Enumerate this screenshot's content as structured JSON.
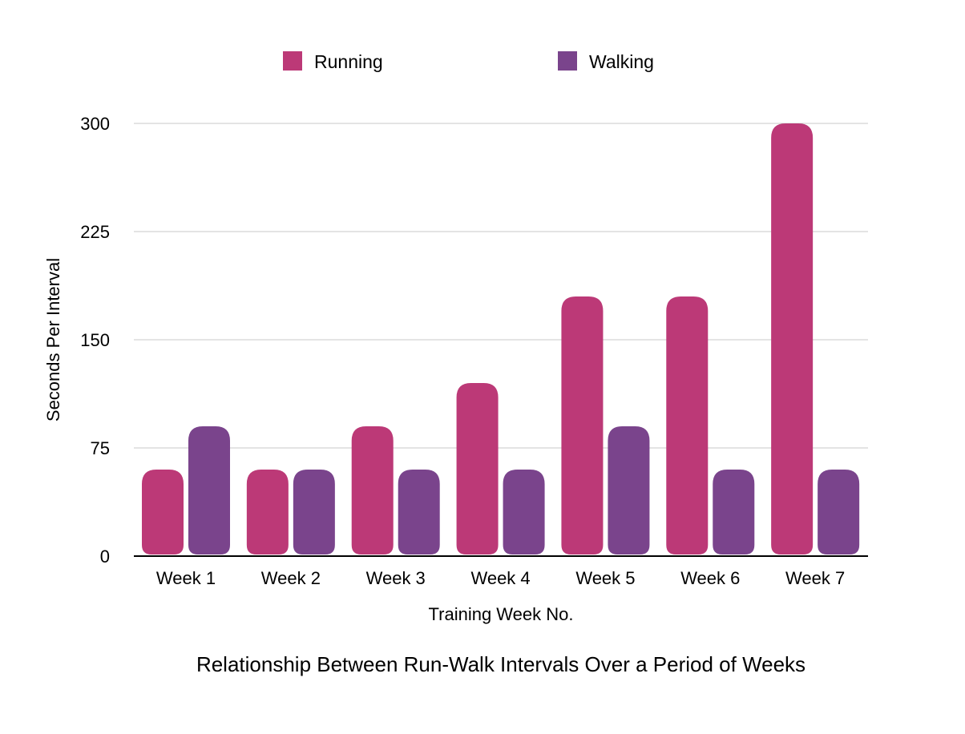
{
  "chart_data": {
    "type": "bar",
    "categories": [
      "Week 1",
      "Week 2",
      "Week 3",
      "Week 4",
      "Week 5",
      "Week 6",
      "Week 7"
    ],
    "series": [
      {
        "name": "Running",
        "color": "#bc3977",
        "values": [
          60,
          60,
          90,
          120,
          180,
          180,
          300
        ]
      },
      {
        "name": "Walking",
        "color": "#7a448c",
        "values": [
          90,
          60,
          60,
          60,
          90,
          60,
          60
        ]
      }
    ],
    "title": "",
    "caption": "Relationship Between Run-Walk Intervals Over a Period of Weeks",
    "xlabel": "Training Week No.",
    "ylabel": "Seconds Per Interval",
    "ylim": [
      0,
      300
    ],
    "yticks": [
      0,
      75,
      150,
      225,
      300
    ],
    "grid": true,
    "legend_position": "top-center"
  }
}
